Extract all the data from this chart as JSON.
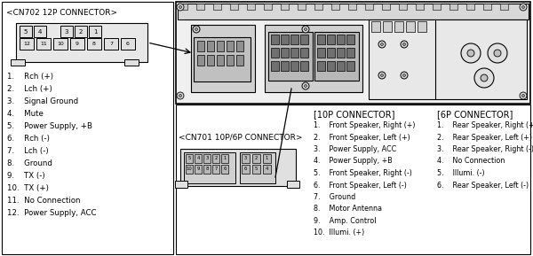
{
  "cn702_title": "<CN702 12P CONNECTOR>",
  "cn701_title": "<CN701 10P/6P CONNECTOR>",
  "cn702_top_pins": [
    "5",
    "4",
    "3",
    "2",
    "1"
  ],
  "cn702_bot_pins": [
    "12",
    "11",
    "10",
    "9",
    "8",
    "7",
    "6"
  ],
  "cn702_list": [
    "1.    Rch (+)",
    "2.    Lch (+)",
    "3.    Signal Ground",
    "4.    Mute",
    "5.    Power Supply, +B",
    "6.    Rch (-)",
    "7.    Lch (-)",
    "8.    Ground",
    "9.    TX (-)",
    "10.  TX (+)",
    "11.  No Connection",
    "12.  Power Supply, ACC"
  ],
  "p10_title": "[10P CONNECTOR]",
  "p10_list": [
    "1.    Front Speaker, Right (+)",
    "2.    Front Speaker, Left (+)",
    "3.    Power Supply, ACC",
    "4.    Power Supply, +B",
    "5.    Front Speaker, Right (-)",
    "6.    Front Speaker, Left (-)",
    "7.    Ground",
    "8.    Motor Antenna",
    "9.    Amp. Control",
    "10.  Illumi. (+)"
  ],
  "p6_title": "[6P CONNECTOR]",
  "p6_list": [
    "1.    Rear Speaker, Right (+)",
    "2.    Rear Speaker, Left (+)",
    "3.    Rear Speaker, Right (-)",
    "4.    No Connection",
    "5.    Illumi. (-)",
    "6.    Rear Speaker, Left (-)"
  ],
  "gray_light": "#d8d8d8",
  "gray_mid": "#b0b0b0",
  "gray_dark": "#888888",
  "white": "#ffffff",
  "black": "#000000"
}
